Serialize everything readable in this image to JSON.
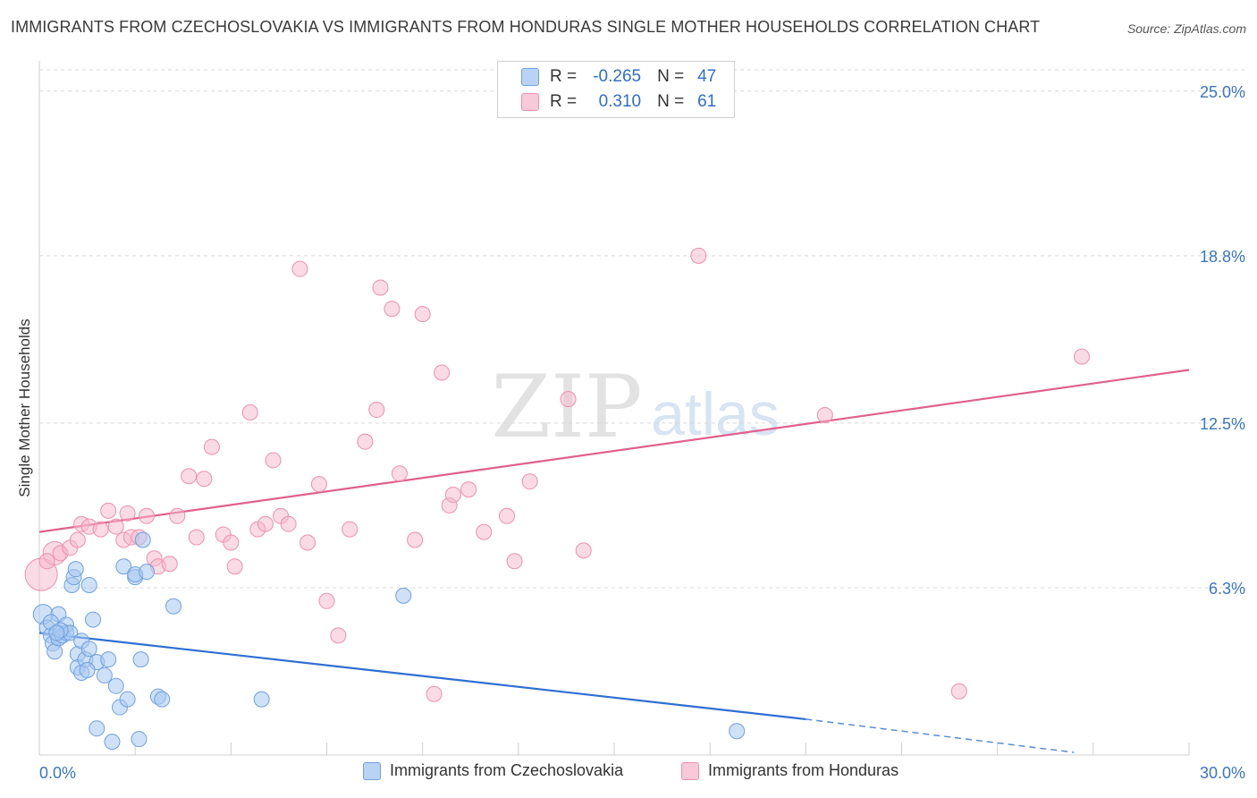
{
  "title": "IMMIGRANTS FROM CZECHOSLOVAKIA VS IMMIGRANTS FROM HONDURAS SINGLE MOTHER HOUSEHOLDS CORRELATION CHART",
  "source": "Source: ZipAtlas.com",
  "watermark": {
    "zip": "ZIP",
    "atlas": "atlas"
  },
  "colors": {
    "blue_fill": "#a8c8f0",
    "blue_stroke": "#6fa0e0",
    "blue_line": "#2d6fd2",
    "pink_fill": "#f5b8cc",
    "pink_stroke": "#ec8fae",
    "pink_line": "#e0608c",
    "tick_label": "#3a75c4",
    "grid": "#d8d8d8"
  },
  "legend": {
    "rows": [
      {
        "r_label": "R =",
        "r_value": "-0.265",
        "n_label": "N =",
        "n_value": "47"
      },
      {
        "r_label": "R =",
        "r_value": "0.310",
        "n_label": "N =",
        "n_value": "61"
      }
    ]
  },
  "bottom_legend": [
    "Immigrants from Czechoslovakia",
    "Immigrants from Honduras"
  ],
  "chart_data": {
    "type": "scatter",
    "title": "IMMIGRANTS FROM CZECHOSLOVAKIA VS IMMIGRANTS FROM HONDURAS SINGLE MOTHER HOUSEHOLDS CORRELATION CHART",
    "xlabel": "",
    "ylabel": "Single Mother Households",
    "xlim": [
      0,
      30
    ],
    "ylim": [
      0,
      25.8
    ],
    "x_tick_labels": [
      "0.0%",
      "30.0%"
    ],
    "y_ticks": [
      6.3,
      12.5,
      18.8,
      25.0
    ],
    "y_tick_labels": [
      "6.3%",
      "12.5%",
      "18.8%",
      "25.0%"
    ],
    "grid": true,
    "legend_position": "top-center",
    "series": [
      {
        "name": "Immigrants from Czechoslovakia",
        "color": "#a8c8f0",
        "trend": {
          "x0": 0,
          "y0": 4.6,
          "x1": 20,
          "y1": 1.35,
          "dash_to_x": 27,
          "dash_to_y": 0.1
        },
        "points": [
          [
            0.1,
            5.3
          ],
          [
            0.2,
            4.8
          ],
          [
            0.3,
            4.5
          ],
          [
            0.35,
            4.2
          ],
          [
            0.4,
            3.9
          ],
          [
            0.5,
            4.4
          ],
          [
            0.5,
            5.3
          ],
          [
            0.6,
            4.5
          ],
          [
            0.7,
            4.9
          ],
          [
            0.7,
            4.6
          ],
          [
            0.8,
            4.6
          ],
          [
            0.85,
            6.4
          ],
          [
            0.9,
            6.7
          ],
          [
            0.95,
            7.0
          ],
          [
            1.0,
            3.8
          ],
          [
            1.0,
            3.3
          ],
          [
            1.1,
            3.1
          ],
          [
            1.1,
            4.3
          ],
          [
            1.2,
            3.6
          ],
          [
            1.3,
            4.0
          ],
          [
            1.3,
            6.4
          ],
          [
            1.4,
            5.1
          ],
          [
            1.5,
            3.5
          ],
          [
            1.5,
            1.0
          ],
          [
            1.7,
            3.0
          ],
          [
            1.8,
            3.6
          ],
          [
            1.9,
            0.5
          ],
          [
            2.0,
            2.6
          ],
          [
            2.1,
            1.8
          ],
          [
            2.2,
            7.1
          ],
          [
            2.3,
            2.1
          ],
          [
            2.5,
            6.7
          ],
          [
            2.5,
            6.8
          ],
          [
            2.6,
            0.6
          ],
          [
            2.65,
            3.6
          ],
          [
            2.7,
            8.1
          ],
          [
            2.8,
            6.9
          ],
          [
            3.1,
            2.2
          ],
          [
            3.2,
            2.1
          ],
          [
            3.5,
            5.6
          ],
          [
            5.8,
            2.1
          ],
          [
            9.5,
            6.0
          ],
          [
            18.2,
            0.9
          ],
          [
            0.3,
            5.0
          ],
          [
            0.55,
            4.7
          ],
          [
            1.25,
            3.2
          ],
          [
            0.45,
            4.6
          ]
        ]
      },
      {
        "name": "Immigrants from Honduras",
        "color": "#f5b8cc",
        "trend": {
          "x0": 0,
          "y0": 8.4,
          "x1": 30,
          "y1": 14.5
        },
        "points": [
          [
            0.05,
            6.8
          ],
          [
            0.4,
            7.6
          ],
          [
            0.55,
            7.6
          ],
          [
            0.8,
            7.8
          ],
          [
            1.0,
            8.1
          ],
          [
            1.1,
            8.7
          ],
          [
            1.3,
            8.6
          ],
          [
            1.6,
            8.5
          ],
          [
            1.8,
            9.2
          ],
          [
            2.0,
            8.6
          ],
          [
            2.2,
            8.1
          ],
          [
            2.4,
            8.2
          ],
          [
            2.6,
            8.2
          ],
          [
            2.8,
            9.0
          ],
          [
            3.0,
            7.4
          ],
          [
            3.1,
            7.1
          ],
          [
            3.4,
            7.2
          ],
          [
            3.6,
            9.0
          ],
          [
            3.9,
            10.5
          ],
          [
            4.1,
            8.2
          ],
          [
            4.3,
            10.4
          ],
          [
            4.5,
            11.6
          ],
          [
            4.8,
            8.3
          ],
          [
            5.0,
            8.0
          ],
          [
            5.1,
            7.1
          ],
          [
            5.5,
            12.9
          ],
          [
            5.7,
            8.5
          ],
          [
            5.9,
            8.7
          ],
          [
            6.1,
            11.1
          ],
          [
            6.3,
            9.0
          ],
          [
            6.5,
            8.7
          ],
          [
            6.8,
            18.3
          ],
          [
            7.0,
            8.0
          ],
          [
            7.3,
            10.2
          ],
          [
            7.5,
            5.8
          ],
          [
            7.8,
            4.5
          ],
          [
            8.1,
            8.5
          ],
          [
            8.5,
            11.8
          ],
          [
            8.8,
            13.0
          ],
          [
            8.9,
            17.6
          ],
          [
            9.2,
            16.8
          ],
          [
            9.4,
            10.6
          ],
          [
            9.8,
            8.1
          ],
          [
            10.0,
            16.6
          ],
          [
            10.3,
            2.3
          ],
          [
            10.5,
            14.4
          ],
          [
            10.7,
            9.4
          ],
          [
            10.8,
            9.8
          ],
          [
            11.2,
            10.0
          ],
          [
            11.6,
            8.4
          ],
          [
            12.2,
            9.0
          ],
          [
            12.4,
            7.3
          ],
          [
            12.8,
            10.3
          ],
          [
            13.8,
            13.4
          ],
          [
            14.2,
            7.7
          ],
          [
            17.2,
            18.8
          ],
          [
            20.5,
            12.8
          ],
          [
            24.0,
            2.4
          ],
          [
            27.2,
            15.0
          ],
          [
            0.2,
            7.3
          ],
          [
            2.3,
            9.1
          ]
        ]
      }
    ]
  }
}
